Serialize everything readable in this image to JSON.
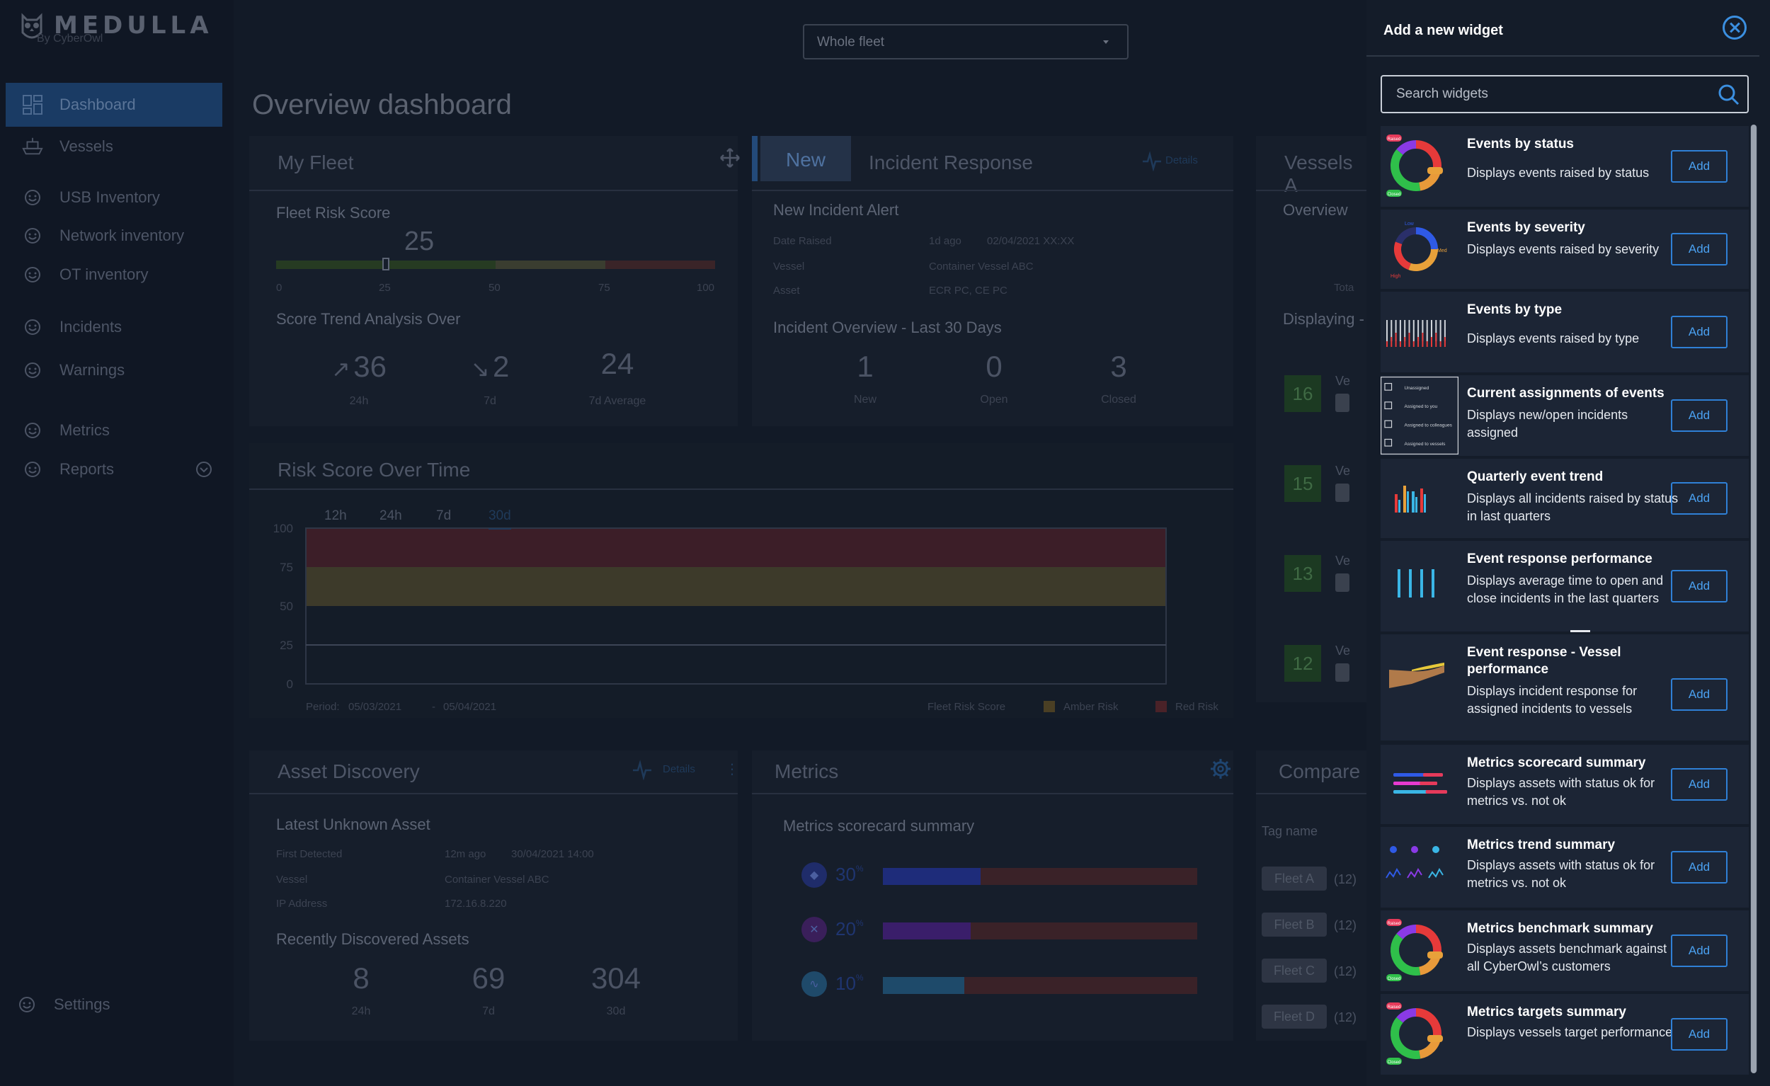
{
  "app": {
    "name": "MEDULLA",
    "byline": "By CyberOwl"
  },
  "sidebar": {
    "items": [
      {
        "label": "Dashboard"
      },
      {
        "label": "Vessels"
      },
      {
        "label": "USB Inventory"
      },
      {
        "label": "Network inventory"
      },
      {
        "label": "OT inventory"
      },
      {
        "label": "Incidents"
      },
      {
        "label": "Warnings"
      },
      {
        "label": "Metrics"
      },
      {
        "label": "Reports"
      }
    ],
    "settings": "Settings"
  },
  "header": {
    "fleet_select": "Whole fleet",
    "page_title": "Overview dashboard"
  },
  "my_fleet": {
    "title": "My Fleet",
    "risk_label": "Fleet Risk Score",
    "risk_value": "25",
    "risk_fraction": 0.25,
    "scale": [
      "0",
      "25",
      "50",
      "75",
      "100"
    ],
    "trend_label": "Score Trend Analysis Over",
    "trend": [
      {
        "value": "36",
        "caption": "24h",
        "direction": "up"
      },
      {
        "value": "2",
        "caption": "7d",
        "direction": "down"
      },
      {
        "value": "24",
        "caption": "7d  Average",
        "direction": "none"
      }
    ]
  },
  "incident": {
    "tab_new": "New",
    "title": "Incident Response",
    "details": "Details",
    "alert_title": "New Incident Alert",
    "rows": [
      {
        "label": "Date Raised",
        "value": "1d ago",
        "extra": "02/04/2021  XX:XX"
      },
      {
        "label": "Vessel",
        "value": "Container Vessel ABC",
        "extra": ""
      },
      {
        "label": "Asset",
        "value": "ECR PC, CE PC",
        "extra": ""
      }
    ],
    "overview_title": "Incident Overview - Last 30 Days",
    "stats": [
      {
        "value": "1",
        "caption": "New"
      },
      {
        "value": "0",
        "caption": "Open"
      },
      {
        "value": "3",
        "caption": "Closed"
      }
    ]
  },
  "vessels_card": {
    "title": "Vessels A",
    "overview": "Overview",
    "tota": "Tota",
    "displaying": "Displaying -",
    "scores": [
      "16",
      "15",
      "13",
      "12"
    ],
    "ve": "Ve"
  },
  "risk_time": {
    "title": "Risk Score Over Time",
    "tabs": [
      "12h",
      "24h",
      "7d",
      "30d"
    ],
    "selected_tab": "30d",
    "period_label": "Period:",
    "period_start": "05/03/2021",
    "period_sep": "-",
    "period_end": "05/04/2021",
    "legend": [
      "Fleet Risk Score",
      "Amber Risk",
      "Red Risk"
    ]
  },
  "chart_data": {
    "type": "area",
    "title": "Risk Score Over Time",
    "ylim": [
      0,
      100
    ],
    "yticks": [
      "100",
      "75",
      "50",
      "25",
      "0"
    ],
    "x": [
      "05/03/2021",
      "05/04/2021"
    ],
    "bands": [
      {
        "name": "Red Risk",
        "from": 75,
        "to": 100,
        "color": "#3c1e28"
      },
      {
        "name": "Amber Risk",
        "from": 50,
        "to": 75,
        "color": "#3d3a2a"
      }
    ],
    "series": [
      {
        "name": "Fleet Risk Score",
        "values": [
          25,
          25
        ]
      }
    ],
    "colors": {
      "red": "#3c1e28",
      "amber": "#3d3a2a",
      "line": "#3d4556"
    }
  },
  "asset_discovery": {
    "title": "Asset Discovery",
    "details": "Details",
    "latest_title": "Latest Unknown Asset",
    "rows": [
      {
        "label": "First Detected",
        "value": "12m ago",
        "extra": "30/04/2021 14:00"
      },
      {
        "label": "Vessel",
        "value": "Container Vessel ABC",
        "extra": ""
      },
      {
        "label": "IP Address",
        "value": "172.16.8.220",
        "extra": ""
      }
    ],
    "recent_title": "Recently Discovered Assets",
    "stats": [
      {
        "value": "8",
        "caption": "24h"
      },
      {
        "value": "69",
        "caption": "7d"
      },
      {
        "value": "304",
        "caption": "30d"
      }
    ]
  },
  "metrics_card": {
    "title": "Metrics",
    "subtitle": "Metrics scorecard summary",
    "rows": [
      {
        "pct": "30",
        "unit": "%",
        "ok": 0.31
      },
      {
        "pct": "20",
        "unit": "%",
        "ok": 0.28
      },
      {
        "pct": "10",
        "unit": "%",
        "ok": 0.26
      }
    ]
  },
  "compare_card": {
    "title": "Compare",
    "col": "Tag name",
    "tags": [
      {
        "name": "Fleet A",
        "count": "(12)"
      },
      {
        "name": "Fleet B",
        "count": "(12)"
      },
      {
        "name": "Fleet C",
        "count": "(12)"
      },
      {
        "name": "Fleet D",
        "count": "(12)"
      }
    ]
  },
  "panel": {
    "title": "Add a new widget",
    "search_placeholder": "Search widgets",
    "add_label": "Add",
    "thumb_status": {
      "top": "Raised",
      "bottom": "Closed"
    },
    "thumb_severity": {
      "low": "Low",
      "med": "Med",
      "high": "High"
    },
    "thumb_assign": [
      "Unassigned",
      "Assigned to you",
      "Assigned to colleagues",
      "Assigned to vessels"
    ],
    "widgets": [
      {
        "name": "Events by status",
        "desc": "Displays events raised by status"
      },
      {
        "name": "Events by severity",
        "desc": "Displays events raised by severity"
      },
      {
        "name": "Events by type",
        "desc": "Displays events raised by type"
      },
      {
        "name": "Current assignments of events",
        "desc": "Displays new/open incidents assigned"
      },
      {
        "name": "Quarterly event trend",
        "desc": "Displays all incidents raised by status in last quarters"
      },
      {
        "name": "Event response performance",
        "desc": "Displays average time to open and close incidents in the last quarters"
      },
      {
        "name": "Event response - Vessel performance",
        "desc": "Displays incident response for assigned incidents to vessels"
      },
      {
        "name": "Metrics scorecard summary",
        "desc": "Displays assets with status ok for metrics vs. not ok"
      },
      {
        "name": "Metrics trend summary",
        "desc": "Displays assets with status ok for metrics vs. not ok"
      },
      {
        "name": "Metrics benchmark summary",
        "desc": "Displays assets benchmark against all CyberOwl’s customers"
      },
      {
        "name": "Metrics targets summary",
        "desc": "Displays vessels target performance"
      }
    ]
  }
}
